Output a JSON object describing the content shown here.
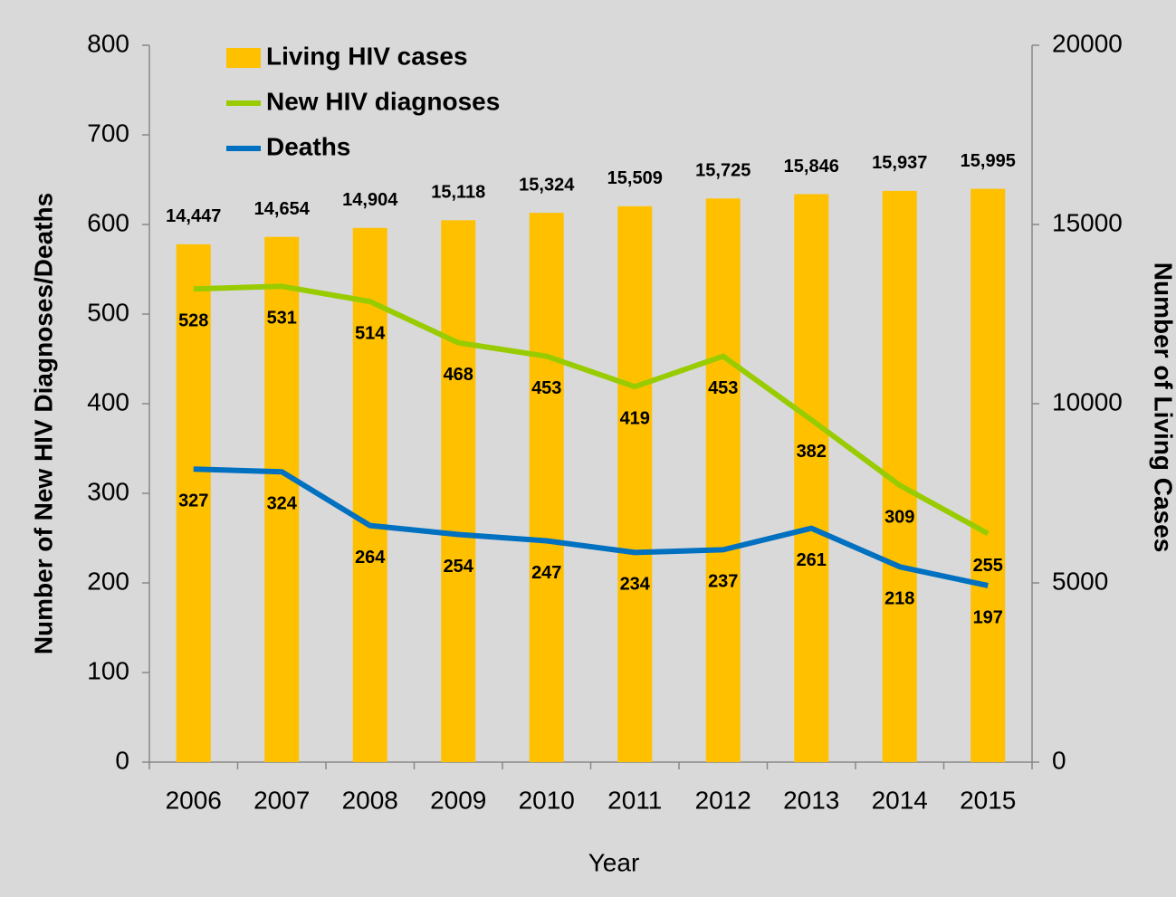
{
  "chart_data": {
    "type": "bar",
    "xlabel": "Year",
    "ylabel": "Number of New HIV Diagnoses/Deaths",
    "y2label": "Number of Living Cases",
    "categories": [
      "2006",
      "2007",
      "2008",
      "2009",
      "2010",
      "2011",
      "2012",
      "2013",
      "2014",
      "2015"
    ],
    "series": [
      {
        "name": "Living HIV cases",
        "type": "bar",
        "axis": "y2",
        "color": "#ffc000",
        "values": [
          14447,
          14654,
          14904,
          15118,
          15324,
          15509,
          15725,
          15846,
          15937,
          15995
        ],
        "value_labels": [
          "14,447",
          "14,654",
          "14,904",
          "15,118",
          "15,324",
          "15,509",
          "15,725",
          "15,846",
          "15,937",
          "15,995"
        ]
      },
      {
        "name": "New HIV diagnoses",
        "type": "line",
        "color": "#99cc00",
        "values": [
          528,
          531,
          514,
          468,
          453,
          419,
          453,
          382,
          309,
          255
        ]
      },
      {
        "name": "Deaths",
        "type": "line",
        "color": "#0070c0",
        "values": [
          327,
          324,
          264,
          254,
          247,
          234,
          237,
          261,
          218,
          197
        ]
      }
    ],
    "ylim": [
      0,
      800
    ],
    "yticks": [
      0,
      100,
      200,
      300,
      400,
      500,
      600,
      700,
      800
    ],
    "y2lim": [
      0,
      20000
    ],
    "y2ticks": [
      0,
      5000,
      10000,
      15000,
      20000
    ],
    "legend": "upper left"
  }
}
